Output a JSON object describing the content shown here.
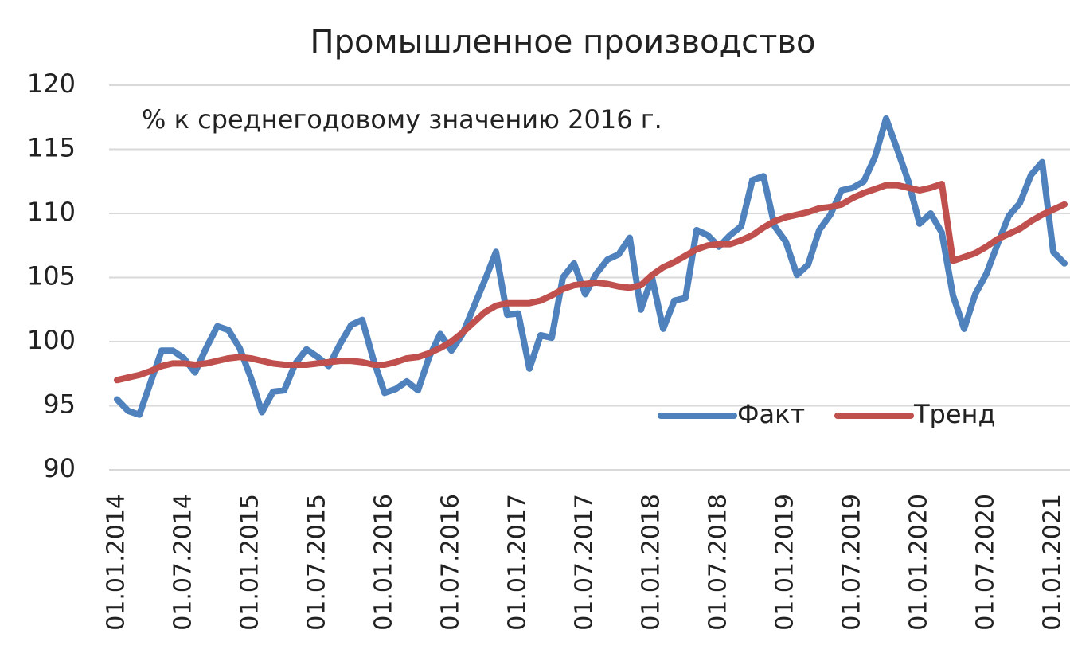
{
  "chart_data": {
    "type": "line",
    "title": "Промышленное производство",
    "subtitle": "% к среднегодовому значению 2016 г.",
    "categories": [
      "01.01.2014",
      null,
      null,
      null,
      null,
      null,
      "01.07.2014",
      null,
      null,
      null,
      null,
      null,
      "01.01.2015",
      null,
      null,
      null,
      null,
      null,
      "01.07.2015",
      null,
      null,
      null,
      null,
      null,
      "01.01.2016",
      null,
      null,
      null,
      null,
      null,
      "01.07.2016",
      null,
      null,
      null,
      null,
      null,
      "01.01.2017",
      null,
      null,
      null,
      null,
      null,
      "01.07.2017",
      null,
      null,
      null,
      null,
      null,
      "01.01.2018",
      null,
      null,
      null,
      null,
      null,
      "01.07.2018",
      null,
      null,
      null,
      null,
      null,
      "01.01.2019",
      null,
      null,
      null,
      null,
      null,
      "01.07.2019",
      null,
      null,
      null,
      null,
      null,
      "01.01.2020",
      null,
      null,
      null,
      null,
      null,
      "01.07.2020",
      null,
      null,
      null,
      null,
      null,
      "01.01.2021",
      null
    ],
    "series": [
      {
        "name": "Факт",
        "color": "#4f81bd",
        "values": [
          95.5,
          94.6,
          94.3,
          96.8,
          99.3,
          99.3,
          98.7,
          97.6,
          99.5,
          101.2,
          100.9,
          99.5,
          97.2,
          94.5,
          96.1,
          96.2,
          98.3,
          99.4,
          98.8,
          98.1,
          99.8,
          101.3,
          101.7,
          98.6,
          96.0,
          96.3,
          96.9,
          96.2,
          98.8,
          100.6,
          99.3,
          100.6,
          102.7,
          104.8,
          107.0,
          102.1,
          102.2,
          97.9,
          100.5,
          100.3,
          105.0,
          106.1,
          103.7,
          105.3,
          106.4,
          106.8,
          108.1,
          102.5,
          105.0,
          101.0,
          103.2,
          103.4,
          108.7,
          108.3,
          107.4,
          108.3,
          109.0,
          112.6,
          112.9,
          109.0,
          107.8,
          105.2,
          106.0,
          108.7,
          109.9,
          111.8,
          112.0,
          112.5,
          114.4,
          117.4,
          115.0,
          112.5,
          109.2,
          110.0,
          108.5,
          103.6,
          101.0,
          103.7,
          105.3,
          107.6,
          109.8,
          110.8,
          113.0,
          114.0,
          107.0,
          106.1
        ]
      },
      {
        "name": "Тренд",
        "color": "#c0504d",
        "values": [
          97.0,
          97.2,
          97.4,
          97.7,
          98.1,
          98.3,
          98.3,
          98.2,
          98.3,
          98.5,
          98.7,
          98.8,
          98.7,
          98.5,
          98.3,
          98.2,
          98.2,
          98.2,
          98.3,
          98.4,
          98.5,
          98.5,
          98.4,
          98.2,
          98.2,
          98.4,
          98.7,
          98.8,
          99.1,
          99.5,
          100.0,
          100.7,
          101.5,
          102.3,
          102.8,
          103.0,
          103.0,
          103.0,
          103.2,
          103.6,
          104.1,
          104.4,
          104.5,
          104.6,
          104.5,
          104.3,
          104.2,
          104.4,
          105.2,
          105.8,
          106.2,
          106.7,
          107.2,
          107.5,
          107.6,
          107.6,
          107.9,
          108.3,
          108.9,
          109.4,
          109.7,
          109.9,
          110.1,
          110.4,
          110.5,
          110.7,
          111.2,
          111.6,
          111.9,
          112.2,
          112.2,
          112.0,
          111.8,
          112.0,
          112.3,
          106.3,
          106.6,
          106.9,
          107.4,
          108.0,
          108.4,
          108.8,
          109.4,
          109.9,
          110.3,
          110.7
        ]
      }
    ],
    "ylim": [
      90,
      120
    ],
    "yticks": [
      90,
      95,
      100,
      105,
      110,
      115,
      120
    ],
    "grid": true,
    "legend": "right"
  }
}
